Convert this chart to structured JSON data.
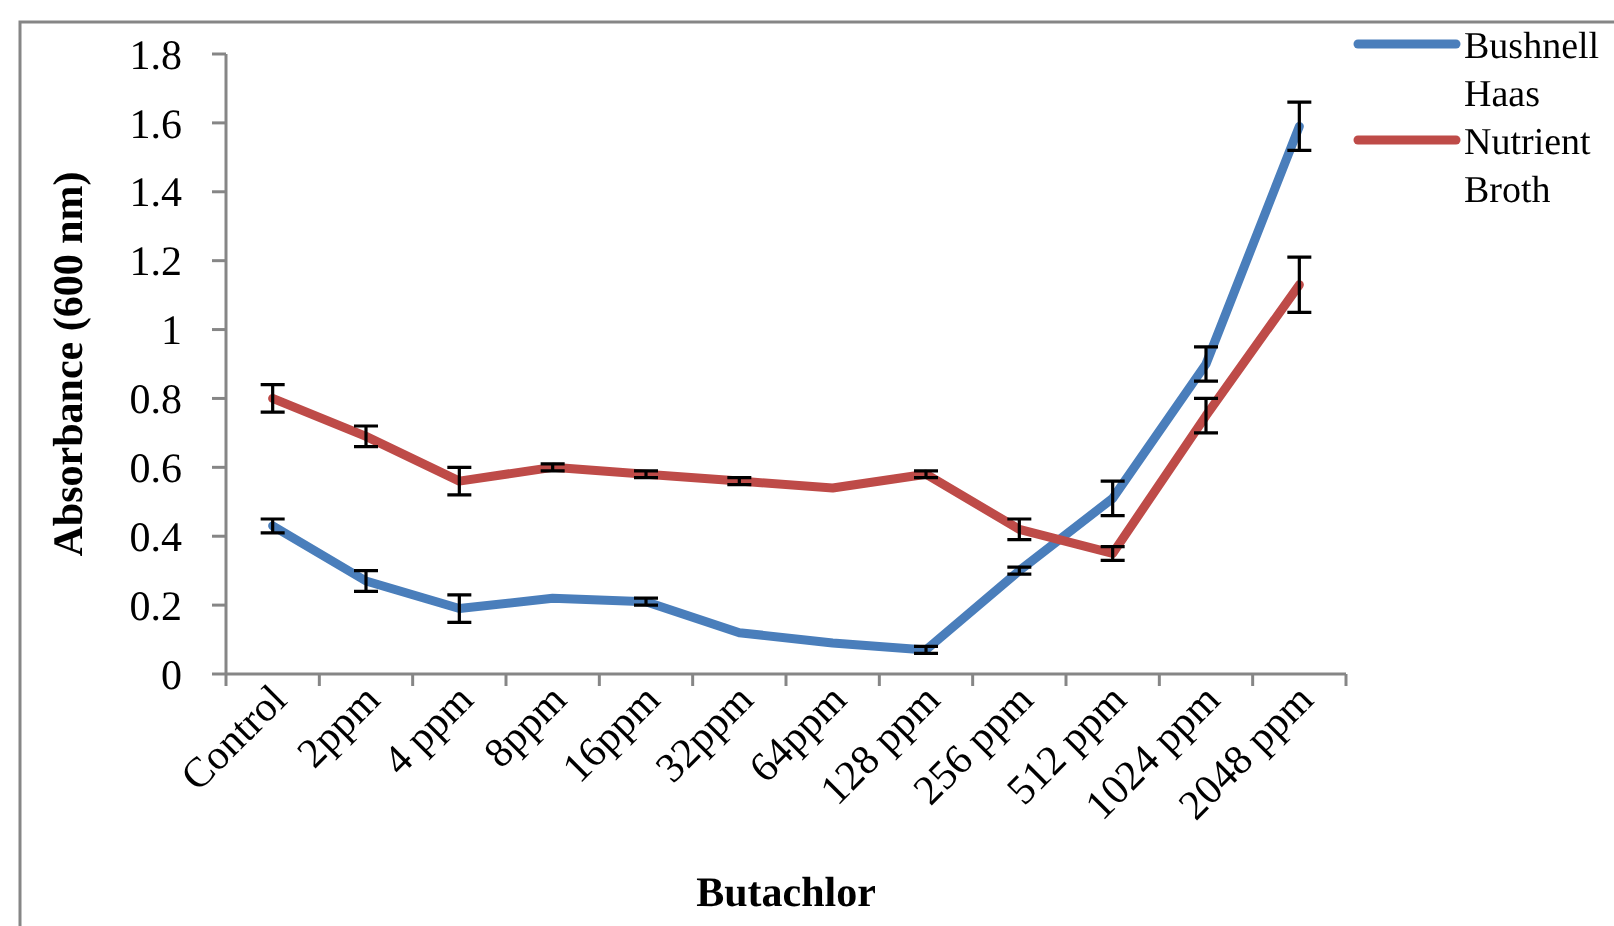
{
  "chart_data": {
    "type": "line",
    "xlabel": "Butachlor",
    "ylabel": "Absorbance (600 nm)",
    "categories": [
      "Control",
      "2ppm",
      "4 ppm",
      "8ppm",
      "16ppm",
      "32ppm",
      "64ppm",
      "128 ppm",
      "256 ppm",
      "512 ppm",
      "1024 ppm",
      "2048 ppm"
    ],
    "ylim": [
      0,
      1.8
    ],
    "yticks": [
      0,
      0.2,
      0.4,
      0.6,
      0.8,
      1,
      1.2,
      1.4,
      1.6,
      1.8
    ],
    "legend": "right",
    "line_style": "solid",
    "series": [
      {
        "name": "Bushnell Haas",
        "color": "#4a7ebb",
        "values": [
          0.43,
          0.27,
          0.19,
          0.22,
          0.21,
          0.12,
          0.09,
          0.07,
          0.3,
          0.51,
          0.9,
          1.59
        ],
        "errors": [
          0.02,
          0.03,
          0.04,
          null,
          0.01,
          null,
          null,
          0.01,
          0.01,
          0.05,
          0.05,
          0.07
        ]
      },
      {
        "name": "Nutrient Broth",
        "color": "#be4b48",
        "values": [
          0.8,
          0.69,
          0.56,
          0.6,
          0.58,
          0.56,
          0.54,
          0.58,
          0.42,
          0.35,
          0.75,
          1.13
        ],
        "errors": [
          0.04,
          0.03,
          0.04,
          0.01,
          0.01,
          0.01,
          null,
          0.01,
          0.03,
          0.02,
          0.05,
          0.08
        ]
      }
    ]
  }
}
